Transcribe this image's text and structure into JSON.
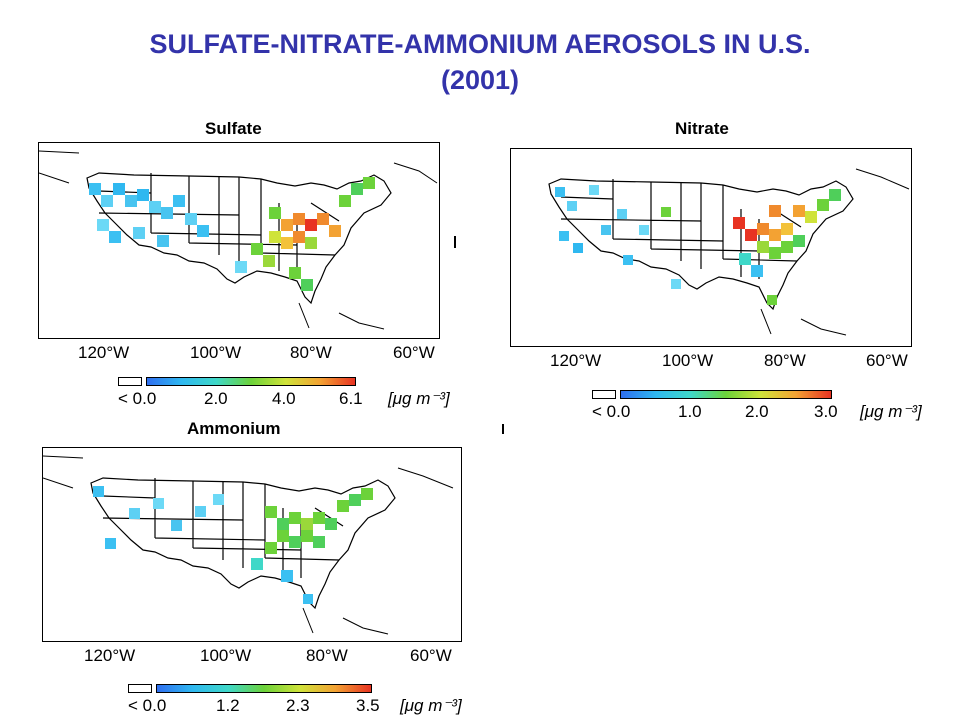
{
  "title_line1": "SULFATE-NITRATE-AMMONIUM AEROSOLS IN U.S.",
  "title_line2": "(2001)",
  "panels": [
    {
      "label": "Sulfate",
      "lon_labels": [
        "120°W",
        "100°W",
        "80°W",
        "60°W"
      ],
      "colorbar": {
        "ticks": [
          "< 0.0",
          "2.0",
          "4.0",
          "6.1"
        ],
        "units": "[μg m⁻³]"
      }
    },
    {
      "label": "Nitrate",
      "lon_labels": [
        "120°W",
        "100°W",
        "80°W",
        "60°W"
      ],
      "colorbar": {
        "ticks": [
          "< 0.0",
          "1.0",
          "2.0",
          "3.0"
        ],
        "units": "[μg m⁻³]"
      }
    },
    {
      "label": "Ammonium",
      "lon_labels": [
        "120°W",
        "100°W",
        "80°W",
        "60°W"
      ],
      "colorbar": {
        "ticks": [
          "< 0.0",
          "1.2",
          "2.3",
          "3.5"
        ],
        "units": "[μg m⁻³]"
      }
    }
  ],
  "colors": {
    "title": "#3333aa",
    "low": "#2fb8f0",
    "mid": "#6cd23a",
    "high": "#e83322"
  }
}
